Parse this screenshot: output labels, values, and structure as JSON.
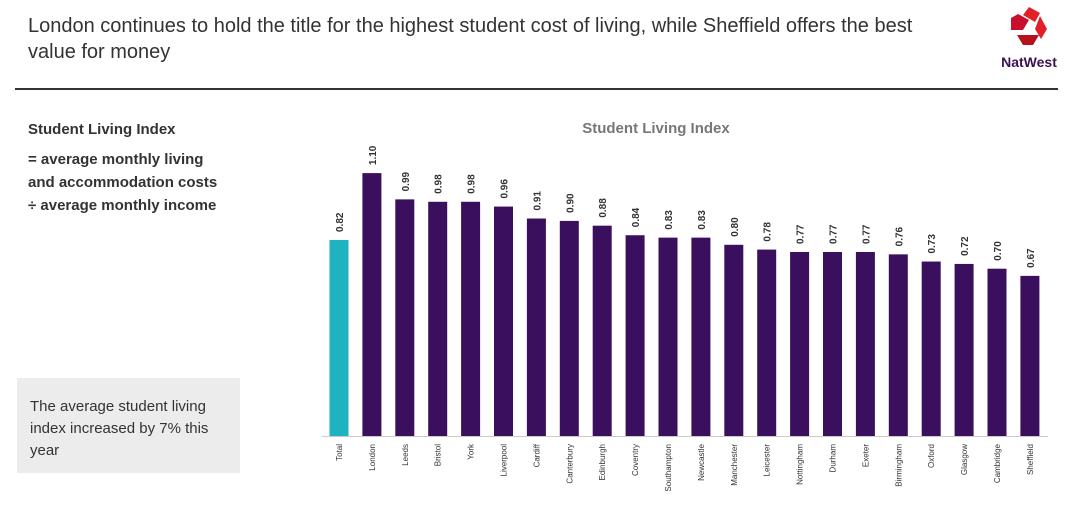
{
  "header": {
    "title": "London continues to hold the title for the highest student cost of living, while Sheffield offers the best value for money",
    "logo_text": "NatWest"
  },
  "definition": {
    "title": "Student Living Index",
    "body": "= average monthly living and accommodation costs ÷ average monthly income"
  },
  "note": "The average student living index increased by 7% this year",
  "colors": {
    "total": "#1fb2c0",
    "city": "#3a0f5e",
    "brand_red": "#e11f26"
  },
  "chart_data": {
    "type": "bar",
    "title": "Student Living Index",
    "categories": [
      "Total",
      "London",
      "Leeds",
      "Bristol",
      "York",
      "Liverpool",
      "Cardiff",
      "Canterbury",
      "Edinburgh",
      "Coventry",
      "Southampton",
      "Newcastle",
      "Manchester",
      "Leicester",
      "Nottingham",
      "Durham",
      "Exeter",
      "Birmingham",
      "Oxford",
      "Glasgow",
      "Cambridge",
      "Sheffield"
    ],
    "values": [
      0.82,
      1.1,
      0.99,
      0.98,
      0.98,
      0.96,
      0.91,
      0.9,
      0.88,
      0.84,
      0.83,
      0.83,
      0.8,
      0.78,
      0.77,
      0.77,
      0.77,
      0.76,
      0.73,
      0.72,
      0.7,
      0.67
    ],
    "value_labels": [
      "0.82",
      "1.10",
      "0.99",
      "0.98",
      "0.98",
      "0.96",
      "0.91",
      "0.90",
      "0.88",
      "0.84",
      "0.83",
      "0.83",
      "0.80",
      "0.78",
      "0.77",
      "0.77",
      "0.77",
      "0.76",
      "0.73",
      "0.72",
      "0.70",
      "0.67"
    ],
    "ylim": [
      0,
      1.1
    ],
    "grid": false,
    "legend": "none"
  }
}
